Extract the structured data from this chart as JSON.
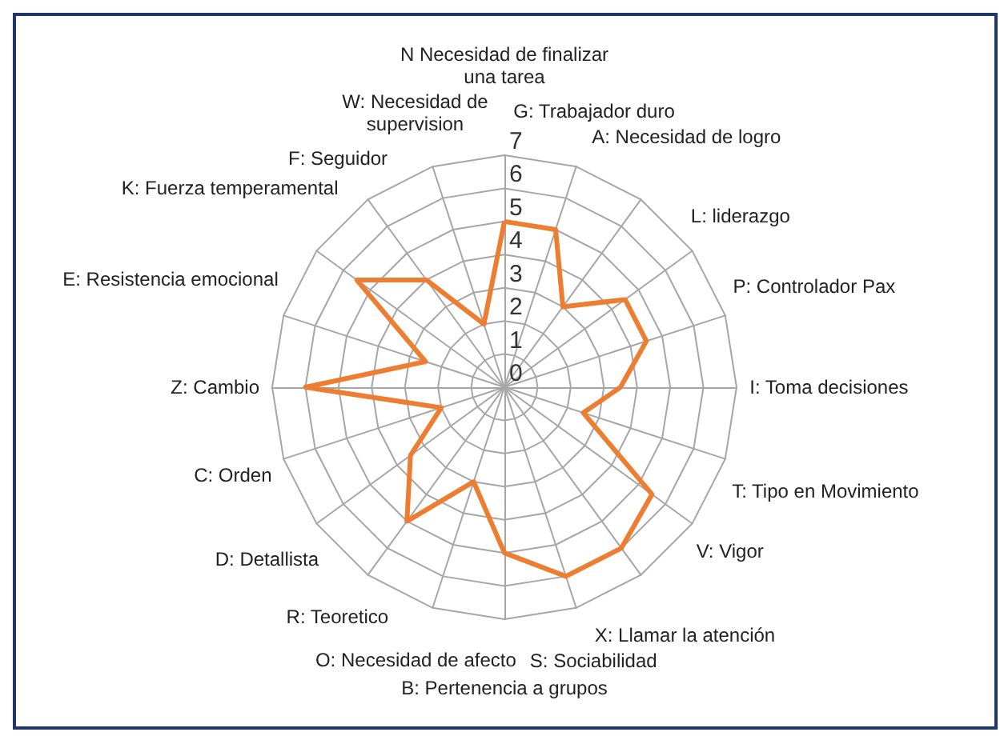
{
  "chart_data": {
    "type": "radar",
    "categories": [
      "N Necesidad de finalizar una tarea",
      "G: Trabajador duro",
      "A: Necesidad de logro",
      "L: liderazgo",
      "P: Controlador Pax",
      "I: Toma decisiones",
      "T: Tipo en Movimiento",
      "V: Vigor",
      "X: Llamar la atención",
      "S: Sociabilidad",
      "B: Pertenencia a grupos",
      "O: Necesidad de afecto",
      "R: Teoretico",
      "D: Detallista",
      "C: Orden",
      "Z: Cambio",
      "E: Resistencia emocional",
      "K: Fuerza temperamental",
      "F: Seguidor",
      "W: Necesidad de supervision"
    ],
    "series": [
      {
        "color": "#ed7d31",
        "values": [
          5,
          5,
          3,
          4.5,
          4.5,
          3.5,
          2.5,
          5.5,
          6,
          6,
          5,
          3,
          5,
          3.5,
          2,
          6,
          2.5,
          5.5,
          4,
          2
        ]
      }
    ],
    "ylim": [
      0,
      7
    ],
    "yticks": [
      0,
      1,
      2,
      3,
      4,
      5,
      6,
      7
    ],
    "grid": true,
    "marker": "none",
    "line_style": "solid"
  }
}
